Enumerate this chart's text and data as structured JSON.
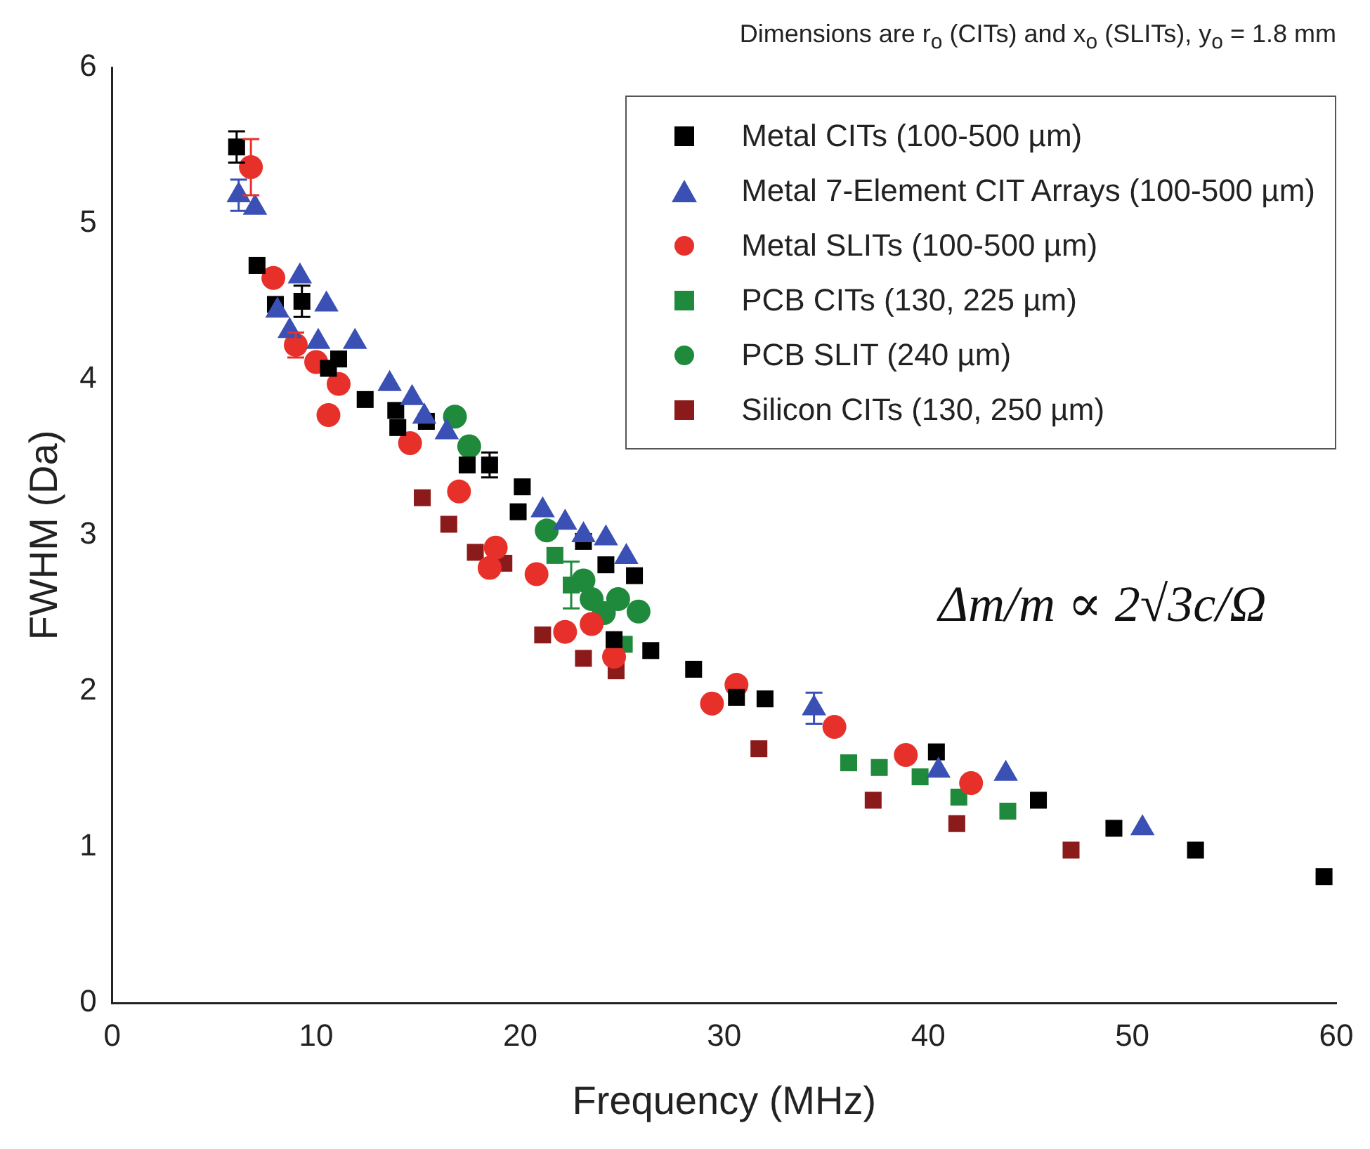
{
  "chart_data": {
    "type": "scatter",
    "xlabel": "Frequency (MHz)",
    "ylabel": "FWHM (Da)",
    "xlim": [
      0,
      60
    ],
    "xticks": [
      0,
      10,
      20,
      30,
      40,
      50,
      60
    ],
    "ylim": [
      0,
      6
    ],
    "yticks": [
      0,
      1,
      2,
      3,
      4,
      5,
      6
    ],
    "grid": false,
    "legend": "top right",
    "annotations": [
      "Dimensions are r$_{o}$ (CITs) and x$_{o}$ (SLITs), y$_{o}$ = 1.8 mm",
      "Δm/m ∝ 2√3c/Ω"
    ],
    "series": [
      {
        "name": "Metal CITs (100-500 µm)",
        "color": "#000000",
        "marker": "square",
        "x": [
          6.1,
          7.1,
          8.0,
          9.3,
          10.6,
          11.1,
          12.4,
          13.9,
          14.0,
          15.4,
          17.4,
          18.5,
          20.1,
          19.9,
          23.1,
          24.2,
          25.6,
          24.6,
          26.4,
          28.5,
          30.6,
          32.0,
          40.4,
          45.4,
          49.1,
          53.1,
          59.4
        ],
        "values": [
          5.49,
          4.73,
          4.48,
          4.5,
          4.07,
          4.13,
          3.87,
          3.8,
          3.69,
          3.73,
          3.45,
          3.45,
          3.31,
          3.15,
          2.96,
          2.81,
          2.74,
          2.33,
          2.26,
          2.14,
          1.96,
          1.95,
          1.61,
          1.3,
          1.12,
          0.98,
          0.81
        ],
        "errors": [
          0.1,
          null,
          null,
          0.1,
          null,
          null,
          null,
          null,
          null,
          null,
          null,
          0.08,
          null,
          null,
          null,
          null,
          null,
          null,
          null,
          null,
          null,
          null,
          null,
          null,
          null,
          null,
          null
        ]
      },
      {
        "name": "Metal 7-Element CIT Arrays (100-500 µm)",
        "color": "#3a50b4",
        "marker": "triangle",
        "x": [
          6.2,
          7.0,
          9.2,
          10.5,
          8.1,
          8.7,
          10.1,
          11.9,
          13.6,
          14.7,
          15.3,
          16.4,
          21.1,
          22.2,
          23.1,
          24.2,
          25.2,
          34.4,
          40.5,
          43.8,
          50.5
        ],
        "values": [
          5.18,
          5.1,
          4.66,
          4.48,
          4.44,
          4.31,
          4.24,
          4.24,
          3.97,
          3.88,
          3.76,
          3.66,
          3.16,
          3.08,
          3.0,
          2.98,
          2.86,
          1.89,
          1.49,
          1.47,
          1.12
        ],
        "errors": [
          0.1,
          null,
          null,
          null,
          null,
          null,
          null,
          null,
          null,
          null,
          null,
          null,
          null,
          null,
          null,
          null,
          null,
          0.1,
          null,
          null,
          null
        ]
      },
      {
        "name": "Metal SLITs (100-500 µm)",
        "color": "#e8302a",
        "marker": "circle",
        "x": [
          6.8,
          7.9,
          9.0,
          10.0,
          10.6,
          11.1,
          14.6,
          17.0,
          18.8,
          18.5,
          20.8,
          22.2,
          23.5,
          24.6,
          29.4,
          30.6,
          35.4,
          38.9,
          42.1
        ],
        "values": [
          5.36,
          4.65,
          4.22,
          4.11,
          3.77,
          3.97,
          3.59,
          3.28,
          2.92,
          2.79,
          2.75,
          2.38,
          2.43,
          2.22,
          1.92,
          2.04,
          1.77,
          1.59,
          1.41
        ],
        "errors": [
          0.18,
          null,
          0.08,
          null,
          null,
          null,
          null,
          null,
          null,
          null,
          null,
          null,
          null,
          null,
          null,
          null,
          null,
          null,
          null
        ]
      },
      {
        "name": "PCB CITs (130, 225 µm)",
        "color": "#1f8a3c",
        "marker": "square",
        "x": [
          21.7,
          22.5,
          25.1,
          36.1,
          37.6,
          39.6,
          41.5,
          43.9
        ],
        "values": [
          2.87,
          2.68,
          2.3,
          1.54,
          1.51,
          1.45,
          1.32,
          1.23
        ],
        "errors": [
          null,
          0.15,
          null,
          null,
          null,
          null,
          null,
          null
        ]
      },
      {
        "name": "PCB SLIT (240 µm)",
        "color": "#1f8a3c",
        "marker": "circle",
        "x": [
          16.8,
          17.5,
          21.3,
          23.1,
          23.5,
          24.1,
          24.8,
          25.8
        ],
        "values": [
          3.76,
          3.57,
          3.03,
          2.71,
          2.59,
          2.5,
          2.59,
          2.51
        ]
      },
      {
        "name": "Silicon CITs (130, 250 µm)",
        "color": "#8b1a1a",
        "marker": "square",
        "x": [
          15.2,
          16.5,
          17.8,
          19.2,
          21.1,
          23.1,
          24.7,
          31.7,
          37.3,
          41.4,
          47.0
        ],
        "values": [
          3.24,
          3.07,
          2.89,
          2.82,
          2.36,
          2.21,
          2.13,
          1.63,
          1.3,
          1.15,
          0.98
        ]
      }
    ]
  }
}
